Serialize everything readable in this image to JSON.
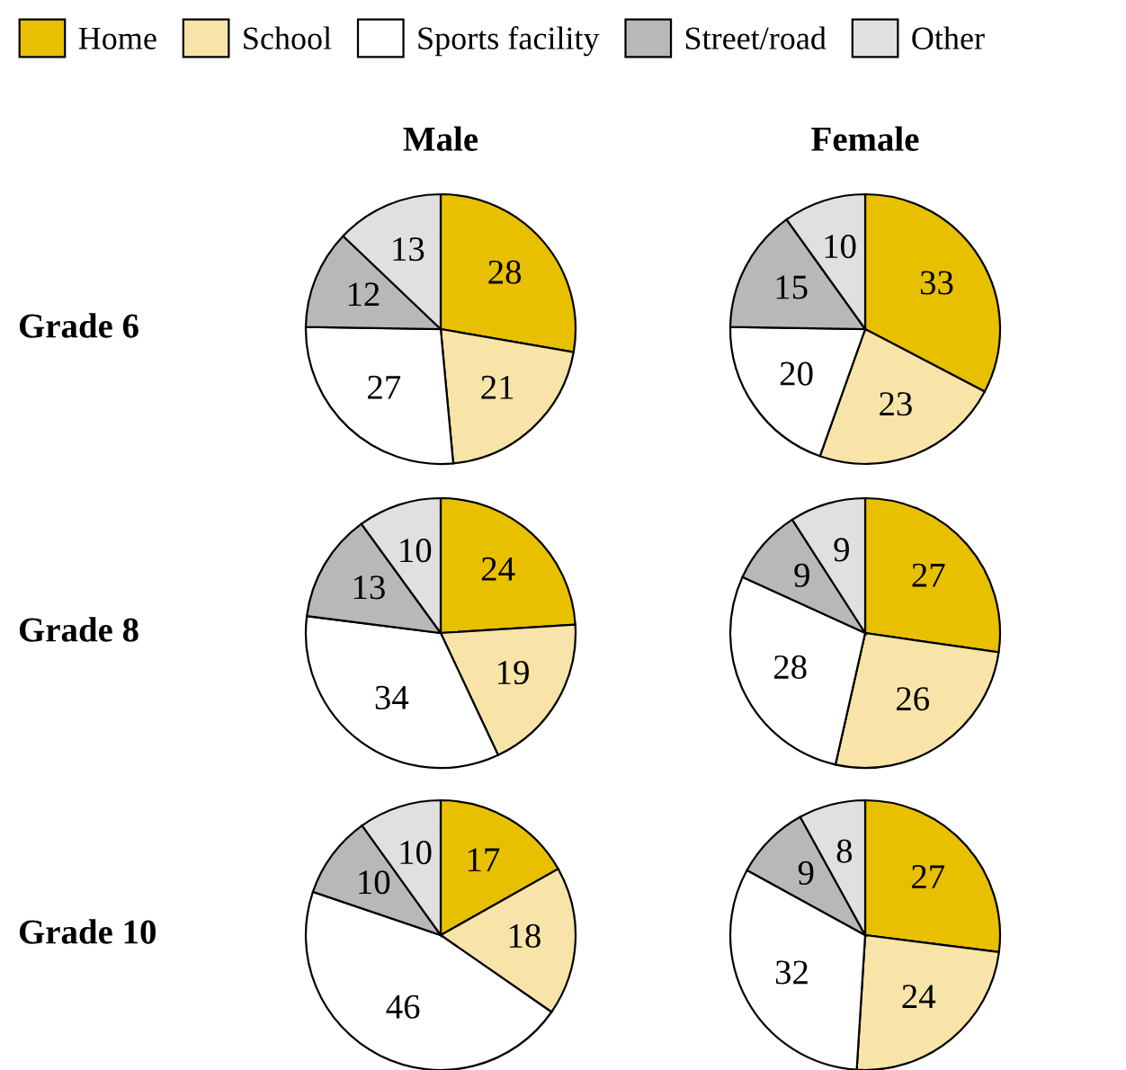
{
  "chart_data": [
    {
      "type": "pie",
      "title": "Male",
      "ylabel": "Grade 6",
      "categories": [
        "Home",
        "School",
        "Sports facility",
        "Street/road",
        "Other"
      ],
      "values": [
        28,
        21,
        27,
        12,
        13
      ],
      "colors": [
        "#e8c000",
        "#f8e4a8",
        "#ffffff",
        "#b8b8b8",
        "#e0e0e0"
      ],
      "data_labels": true,
      "legend": "top"
    },
    {
      "type": "pie",
      "title": "Female",
      "categories": [
        null,
        null,
        null,
        null,
        null
      ],
      "values": [
        33,
        23,
        20,
        15,
        10
      ],
      "colors": [
        "#e8c000",
        "#f8e4a8",
        "#ffffff",
        "#b8b8b8",
        "#e0e0e0"
      ],
      "data_labels": true
    },
    {
      "type": "pie",
      "ylabel": "Grade 8",
      "categories": [
        null,
        null,
        null,
        null,
        null
      ],
      "values": [
        24,
        19,
        34,
        13,
        10
      ],
      "colors": [
        "#e8c000",
        "#f8e4a8",
        "#ffffff",
        "#b8b8b8",
        "#e0e0e0"
      ],
      "data_labels": true
    },
    {
      "type": "pie",
      "categories": [
        null,
        null,
        null,
        null,
        null
      ],
      "values": [
        27,
        26,
        28,
        9,
        9
      ],
      "colors": [
        "#e8c000",
        "#f8e4a8",
        "#ffffff",
        "#b8b8b8",
        "#e0e0e0"
      ],
      "data_labels": true
    },
    {
      "type": "pie",
      "ylabel": "Grade 10",
      "categories": [
        null,
        null,
        null,
        null,
        null
      ],
      "values": [
        17,
        18,
        46,
        10,
        10
      ],
      "colors": [
        "#e8c000",
        "#f8e4a8",
        "#ffffff",
        "#b8b8b8",
        "#e0e0e0"
      ],
      "data_labels": true
    },
    {
      "type": "pie",
      "categories": [
        null,
        null,
        null,
        null,
        null
      ],
      "values": [
        27,
        24,
        32,
        9,
        8
      ],
      "colors": [
        "#e8c000",
        "#f8e4a8",
        "#ffffff",
        "#b8b8b8",
        "#e0e0e0"
      ],
      "data_labels": true
    }
  ]
}
